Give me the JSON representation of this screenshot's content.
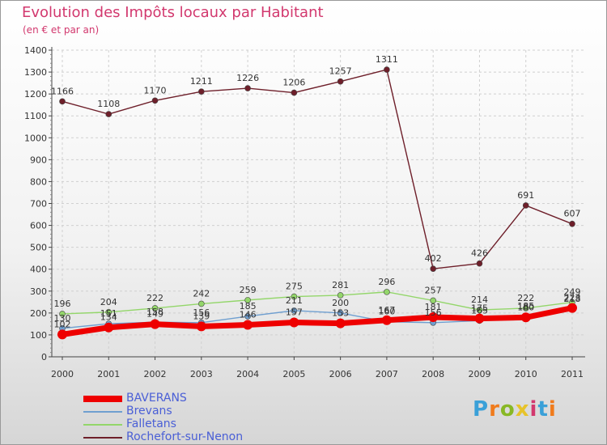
{
  "title": "Evolution des Impôts locaux par Habitant",
  "subtitle": "(en € et par an)",
  "logo": "Proxiti",
  "chart_data": {
    "type": "line",
    "title": "Evolution des Impôts locaux par Habitant",
    "ylabel": "(en € et par an)",
    "xlabel": "",
    "ylim": [
      0,
      1400
    ],
    "yticks": [
      0,
      100,
      200,
      300,
      400,
      500,
      600,
      700,
      800,
      900,
      1000,
      1100,
      1200,
      1300,
      1400
    ],
    "categories": [
      "2000",
      "2001",
      "2002",
      "2003",
      "2004",
      "2005",
      "2006",
      "2007",
      "2008",
      "2009",
      "2010",
      "2011"
    ],
    "legend_position": "bottom-left",
    "series": [
      {
        "name": "Rochefort-sur-Nenon",
        "color": "#6e1f2a",
        "values": [
          1166,
          1108,
          1170,
          1211,
          1226,
          1206,
          1257,
          1311,
          402,
          426,
          691,
          607
        ]
      },
      {
        "name": "Falletans",
        "color": "#93d66a",
        "values": [
          196,
          204,
          222,
          242,
          259,
          275,
          281,
          296,
          257,
          214,
          222,
          249
        ]
      },
      {
        "name": "Brevans",
        "color": "#6f9fd0",
        "values": [
          130,
          151,
          158,
          156,
          185,
          211,
          200,
          160,
          156,
          165,
          185,
          218
        ]
      },
      {
        "name": "BAVERANS",
        "color": "#ee0000",
        "values": [
          102,
          134,
          149,
          139,
          146,
          157,
          153,
          167,
          181,
          175,
          180,
          223
        ]
      }
    ]
  }
}
